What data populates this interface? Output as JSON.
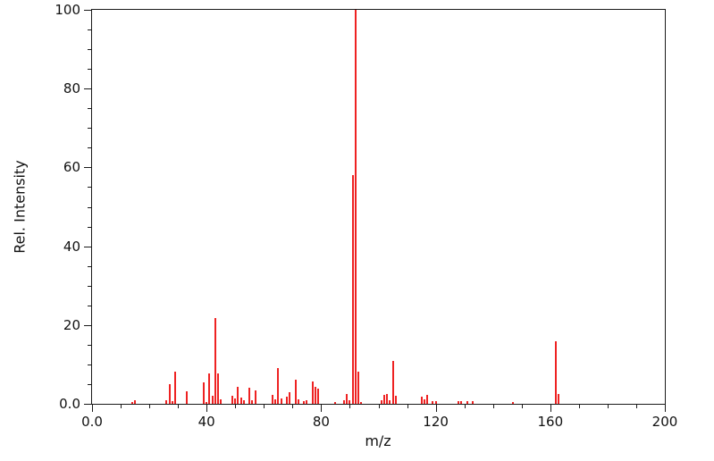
{
  "chart_data": {
    "type": "bar",
    "subtype": "mass-spectrum-stick-plot",
    "title": "",
    "xlabel": "m/z",
    "ylabel": "Rel. Intensity",
    "xlim": [
      0,
      200
    ],
    "ylim": [
      0,
      100
    ],
    "grid": false,
    "legend": "none",
    "bar_color": "#ee2222",
    "axis_color": "#1a1a1a",
    "background_color": "#ffffff",
    "x_major_ticks": [
      0,
      40,
      80,
      120,
      160,
      200
    ],
    "x_major_tick_labels": [
      "0.0",
      "40",
      "80",
      "120",
      "160",
      "200"
    ],
    "x_minor_tick_step": 10,
    "y_major_ticks": [
      0,
      20,
      40,
      60,
      80,
      100
    ],
    "y_major_tick_labels": [
      "0.0",
      "20",
      "40",
      "60",
      "80",
      "100"
    ],
    "y_minor_tick_step": 5,
    "peaks_format": [
      "mz",
      "relative_intensity"
    ],
    "peaks": [
      [
        14,
        0.5
      ],
      [
        15,
        0.9
      ],
      [
        26,
        0.8
      ],
      [
        27,
        4.9
      ],
      [
        28,
        0.6
      ],
      [
        29,
        8.2
      ],
      [
        33,
        3.2
      ],
      [
        39,
        5.4
      ],
      [
        40,
        0.5
      ],
      [
        41,
        7.8
      ],
      [
        42,
        2.0
      ],
      [
        43,
        21.7
      ],
      [
        44,
        7.6
      ],
      [
        45,
        1.1
      ],
      [
        49,
        2.0
      ],
      [
        50,
        1.3
      ],
      [
        51,
        4.2
      ],
      [
        52,
        1.5
      ],
      [
        53,
        0.9
      ],
      [
        55,
        4.0
      ],
      [
        56,
        0.9
      ],
      [
        57,
        3.3
      ],
      [
        63,
        2.2
      ],
      [
        64,
        1.2
      ],
      [
        65,
        9.0
      ],
      [
        66,
        1.4
      ],
      [
        68,
        1.9
      ],
      [
        69,
        3.0
      ],
      [
        71,
        6.1
      ],
      [
        72,
        1.1
      ],
      [
        74,
        0.7
      ],
      [
        75,
        0.9
      ],
      [
        77,
        5.6
      ],
      [
        78,
        4.3
      ],
      [
        79,
        3.9
      ],
      [
        85,
        0.5
      ],
      [
        88,
        1.0
      ],
      [
        89,
        2.4
      ],
      [
        90,
        0.9
      ],
      [
        91,
        58.0
      ],
      [
        92,
        100.0
      ],
      [
        93,
        8.2
      ],
      [
        94,
        0.5
      ],
      [
        101,
        0.8
      ],
      [
        102,
        2.3
      ],
      [
        103,
        2.6
      ],
      [
        104,
        1.0
      ],
      [
        105,
        10.9
      ],
      [
        106,
        2.0
      ],
      [
        115,
        1.9
      ],
      [
        116,
        1.2
      ],
      [
        117,
        2.2
      ],
      [
        119,
        0.7
      ],
      [
        120,
        0.7
      ],
      [
        128,
        0.6
      ],
      [
        129,
        0.7
      ],
      [
        131,
        0.6
      ],
      [
        133,
        0.7
      ],
      [
        147,
        0.5
      ],
      [
        162,
        15.8
      ],
      [
        163,
        2.6
      ]
    ]
  }
}
